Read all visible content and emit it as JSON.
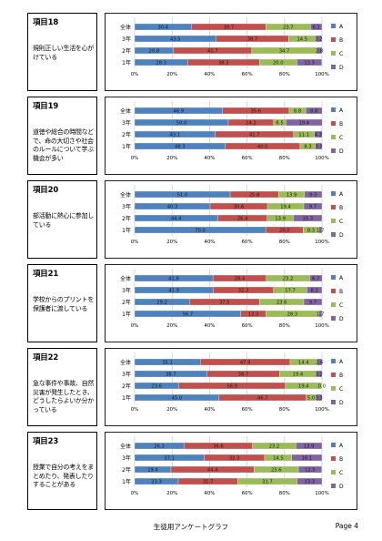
{
  "footer": {
    "title": "生徒用アンケートグラフ",
    "page": "Page 4"
  },
  "chart_data": [
    {
      "type": "bar",
      "stacked": true,
      "orientation": "horizontal",
      "item_label": "項目18",
      "question": "規則正しい生活を心がけている",
      "categories": [
        "全体",
        "3年",
        "2年",
        "1年"
      ],
      "series": [
        {
          "name": "A",
          "values": [
            30.4,
            43.5,
            20.8,
            28.3
          ]
        },
        {
          "name": "B",
          "values": [
            39.7,
            38.7,
            41.7,
            38.3
          ]
        },
        {
          "name": "C",
          "values": [
            23.7,
            14.5,
            34.7,
            20.0
          ]
        },
        {
          "name": "D",
          "values": [
            6.2,
            3.2,
            2.8,
            13.3
          ]
        }
      ],
      "xticks": [
        "0%",
        "20%",
        "40%",
        "60%",
        "80%",
        "100%"
      ],
      "xlim": [
        0,
        100
      ],
      "legend": "right"
    },
    {
      "type": "bar",
      "stacked": true,
      "orientation": "horizontal",
      "item_label": "項目19",
      "question": "道徳や総合の時間などで、命の大切さや社会のルールについて学ぶ機会が多い",
      "categories": [
        "全体",
        "3年",
        "2年",
        "1年"
      ],
      "series": [
        {
          "name": "A",
          "values": [
            46.9,
            50.0,
            43.1,
            48.3
          ]
        },
        {
          "name": "B",
          "values": [
            35.6,
            24.2,
            41.7,
            40.0
          ]
        },
        {
          "name": "C",
          "values": [
            8.8,
            6.5,
            11.1,
            8.3
          ]
        },
        {
          "name": "D",
          "values": [
            8.8,
            19.4,
            4.2,
            3.3
          ]
        }
      ],
      "xticks": [
        "0%",
        "20%",
        "40%",
        "60%",
        "80%",
        "100%"
      ],
      "xlim": [
        0,
        100
      ],
      "legend": "right"
    },
    {
      "type": "bar",
      "stacked": true,
      "orientation": "horizontal",
      "item_label": "項目20",
      "question": "部活動に熱心に参加している",
      "categories": [
        "全体",
        "3年",
        "2年",
        "1年"
      ],
      "series": [
        {
          "name": "A",
          "values": [
            51.0,
            40.3,
            44.4,
            70.0
          ]
        },
        {
          "name": "B",
          "values": [
            25.8,
            30.6,
            26.4,
            20.0
          ]
        },
        {
          "name": "C",
          "values": [
            13.9,
            19.4,
            13.9,
            8.3
          ]
        },
        {
          "name": "D",
          "values": [
            9.3,
            9.7,
            15.3,
            1.7
          ]
        }
      ],
      "xticks": [
        "0%",
        "20%",
        "40%",
        "60%",
        "80%",
        "100%"
      ],
      "xlim": [
        0,
        100
      ],
      "legend": "right"
    },
    {
      "type": "bar",
      "stacked": true,
      "orientation": "horizontal",
      "item_label": "項目21",
      "question": "学校からのプリントを保護者に渡している",
      "categories": [
        "全体",
        "3年",
        "2年",
        "1年"
      ],
      "series": [
        {
          "name": "A",
          "values": [
            41.8,
            41.9,
            29.2,
            56.7
          ]
        },
        {
          "name": "B",
          "values": [
            28.4,
            32.3,
            37.5,
            13.3
          ]
        },
        {
          "name": "C",
          "values": [
            23.2,
            17.7,
            23.6,
            28.3
          ]
        },
        {
          "name": "D",
          "values": [
            6.7,
            8.1,
            9.7,
            1.7
          ]
        }
      ],
      "xticks": [
        "0%",
        "20%",
        "40%",
        "60%",
        "80%",
        "100%"
      ],
      "xlim": [
        0,
        100
      ],
      "legend": "right"
    },
    {
      "type": "bar",
      "stacked": true,
      "orientation": "horizontal",
      "item_label": "項目22",
      "question": "急な事件や事故、自然災害が発生したとき、どうしたらよいか分かっている",
      "categories": [
        "全体",
        "3年",
        "2年",
        "1年"
      ],
      "series": [
        {
          "name": "A",
          "values": [
            35.1,
            38.7,
            23.6,
            45.0
          ]
        },
        {
          "name": "B",
          "values": [
            47.9,
            38.7,
            56.9,
            46.7
          ]
        },
        {
          "name": "C",
          "values": [
            14.4,
            19.4,
            19.4,
            5.0
          ]
        },
        {
          "name": "D",
          "values": [
            2.6,
            3.2,
            0.0,
            3.3
          ]
        }
      ],
      "xticks": [
        "0%",
        "20%",
        "40%",
        "60%",
        "80%",
        "100%"
      ],
      "xlim": [
        0,
        100
      ],
      "legend": "right"
    },
    {
      "type": "bar",
      "stacked": true,
      "orientation": "horizontal",
      "item_label": "項目23",
      "question": "授業で自分の考えをまとめたり、発表したりすることがある",
      "categories": [
        "全体",
        "3年",
        "2年",
        "1年"
      ],
      "series": [
        {
          "name": "A",
          "values": [
            26.3,
            37.1,
            19.4,
            23.3
          ]
        },
        {
          "name": "B",
          "values": [
            36.6,
            32.3,
            44.4,
            31.7
          ]
        },
        {
          "name": "C",
          "values": [
            23.2,
            14.5,
            23.6,
            31.7
          ]
        },
        {
          "name": "D",
          "values": [
            13.9,
            16.1,
            12.5,
            13.3
          ]
        }
      ],
      "xticks": [
        "0%",
        "20%",
        "40%",
        "60%",
        "80%",
        "100%"
      ],
      "xlim": [
        0,
        100
      ],
      "legend": "right"
    }
  ],
  "colors": {
    "A": "#4f81bd",
    "B": "#c0504d",
    "C": "#9bbb59",
    "D": "#8064a2"
  }
}
